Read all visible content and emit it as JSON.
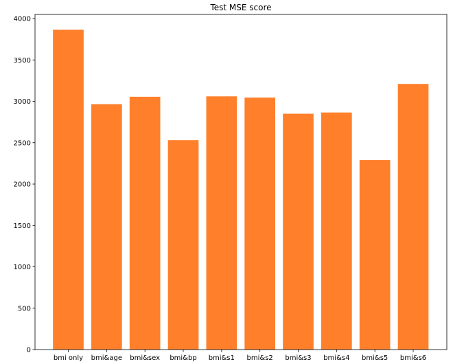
{
  "chart_data": {
    "type": "bar",
    "title": "Test MSE score",
    "xlabel": "",
    "ylabel": "",
    "categories": [
      "bmi only",
      "bmi&age",
      "bmi&sex",
      "bmi&bp",
      "bmi&s1",
      "bmi&s2",
      "bmi&s3",
      "bmi&s4",
      "bmi&s5",
      "bmi&s6"
    ],
    "values": [
      3865,
      2965,
      3055,
      2530,
      3060,
      3045,
      2850,
      2865,
      2290,
      3210
    ],
    "ylim": [
      0,
      4050
    ],
    "yticks": [
      0,
      500,
      1000,
      1500,
      2000,
      2500,
      3000,
      3500,
      4000
    ],
    "ytick_labels": [
      "0",
      "500",
      "1000",
      "1500",
      "2000",
      "2500",
      "3000",
      "3500",
      "4000"
    ],
    "bar_color": "#ff7f2a",
    "grid": false
  }
}
